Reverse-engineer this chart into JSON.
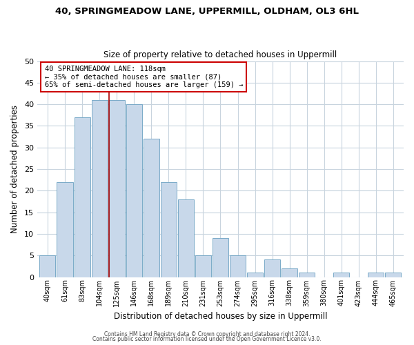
{
  "title": "40, SPRINGMEADOW LANE, UPPERMILL, OLDHAM, OL3 6HL",
  "subtitle": "Size of property relative to detached houses in Uppermill",
  "xlabel": "Distribution of detached houses by size in Uppermill",
  "ylabel": "Number of detached properties",
  "bar_labels": [
    "40sqm",
    "61sqm",
    "83sqm",
    "104sqm",
    "125sqm",
    "146sqm",
    "168sqm",
    "189sqm",
    "210sqm",
    "231sqm",
    "253sqm",
    "274sqm",
    "295sqm",
    "316sqm",
    "338sqm",
    "359sqm",
    "380sqm",
    "401sqm",
    "423sqm",
    "444sqm",
    "465sqm"
  ],
  "bar_values": [
    5,
    22,
    37,
    41,
    41,
    40,
    32,
    22,
    18,
    5,
    9,
    5,
    1,
    4,
    2,
    1,
    0,
    1,
    0,
    1,
    1
  ],
  "bar_color": "#c8d8ea",
  "bar_edge_color": "#7aaac8",
  "highlight_bar_index": 4,
  "highlight_line_color": "#aa0000",
  "ylim": [
    0,
    50
  ],
  "yticks": [
    0,
    5,
    10,
    15,
    20,
    25,
    30,
    35,
    40,
    45,
    50
  ],
  "annotation_title": "40 SPRINGMEADOW LANE: 118sqm",
  "annotation_line1": "← 35% of detached houses are smaller (87)",
  "annotation_line2": "65% of semi-detached houses are larger (159) →",
  "annotation_box_color": "#ffffff",
  "annotation_box_edge": "#cc0000",
  "footer_line1": "Contains HM Land Registry data © Crown copyright and database right 2024.",
  "footer_line2": "Contains public sector information licensed under the Open Government Licence v3.0.",
  "background_color": "#ffffff",
  "grid_color": "#c8d4de"
}
